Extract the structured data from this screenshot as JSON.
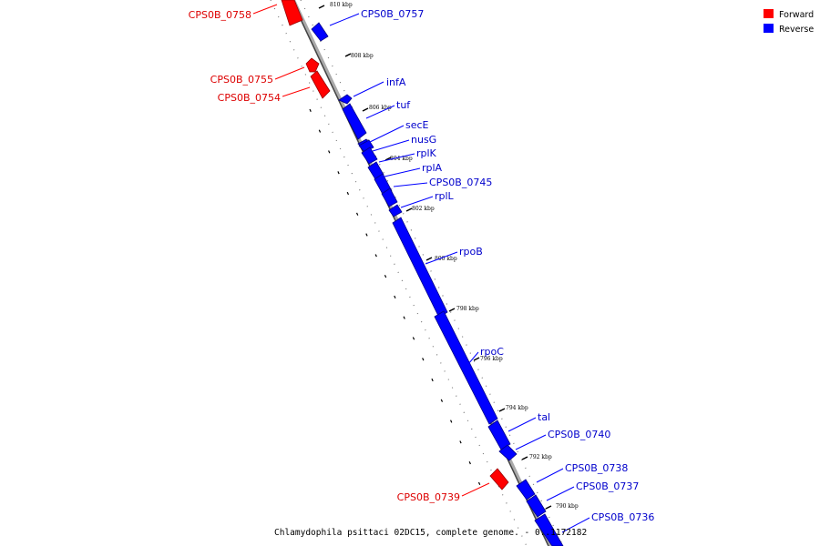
{
  "caption": "Chlamydophila psittaci 02DC15, complete genome. - 0..1172182",
  "legend": [
    {
      "label": "Forward",
      "color": "#ff0000"
    },
    {
      "label": "Reverse",
      "color": "#0000ff"
    }
  ],
  "ticks": [
    "810 kbp",
    "808 kbp",
    "806 kbp",
    "804 kbp",
    "802 kbp",
    "800 kbp",
    "798 kbp",
    "796 kbp",
    "794 kbp",
    "792 kbp",
    "790 kbp"
  ],
  "forward_genes": [
    "CPS0B_0758",
    "CPS0B_0755",
    "CPS0B_0754",
    "CPS0B_0739"
  ],
  "reverse_genes": [
    "CPS0B_0757",
    "infA",
    "tuf",
    "secE",
    "nusG",
    "rplK",
    "rplA",
    "CPS0B_0745",
    "rplL",
    "rpoB",
    "rpoC",
    "tal",
    "CPS0B_0740",
    "CPS0B_0738",
    "CPS0B_0737",
    "CPS0B_0736"
  ]
}
